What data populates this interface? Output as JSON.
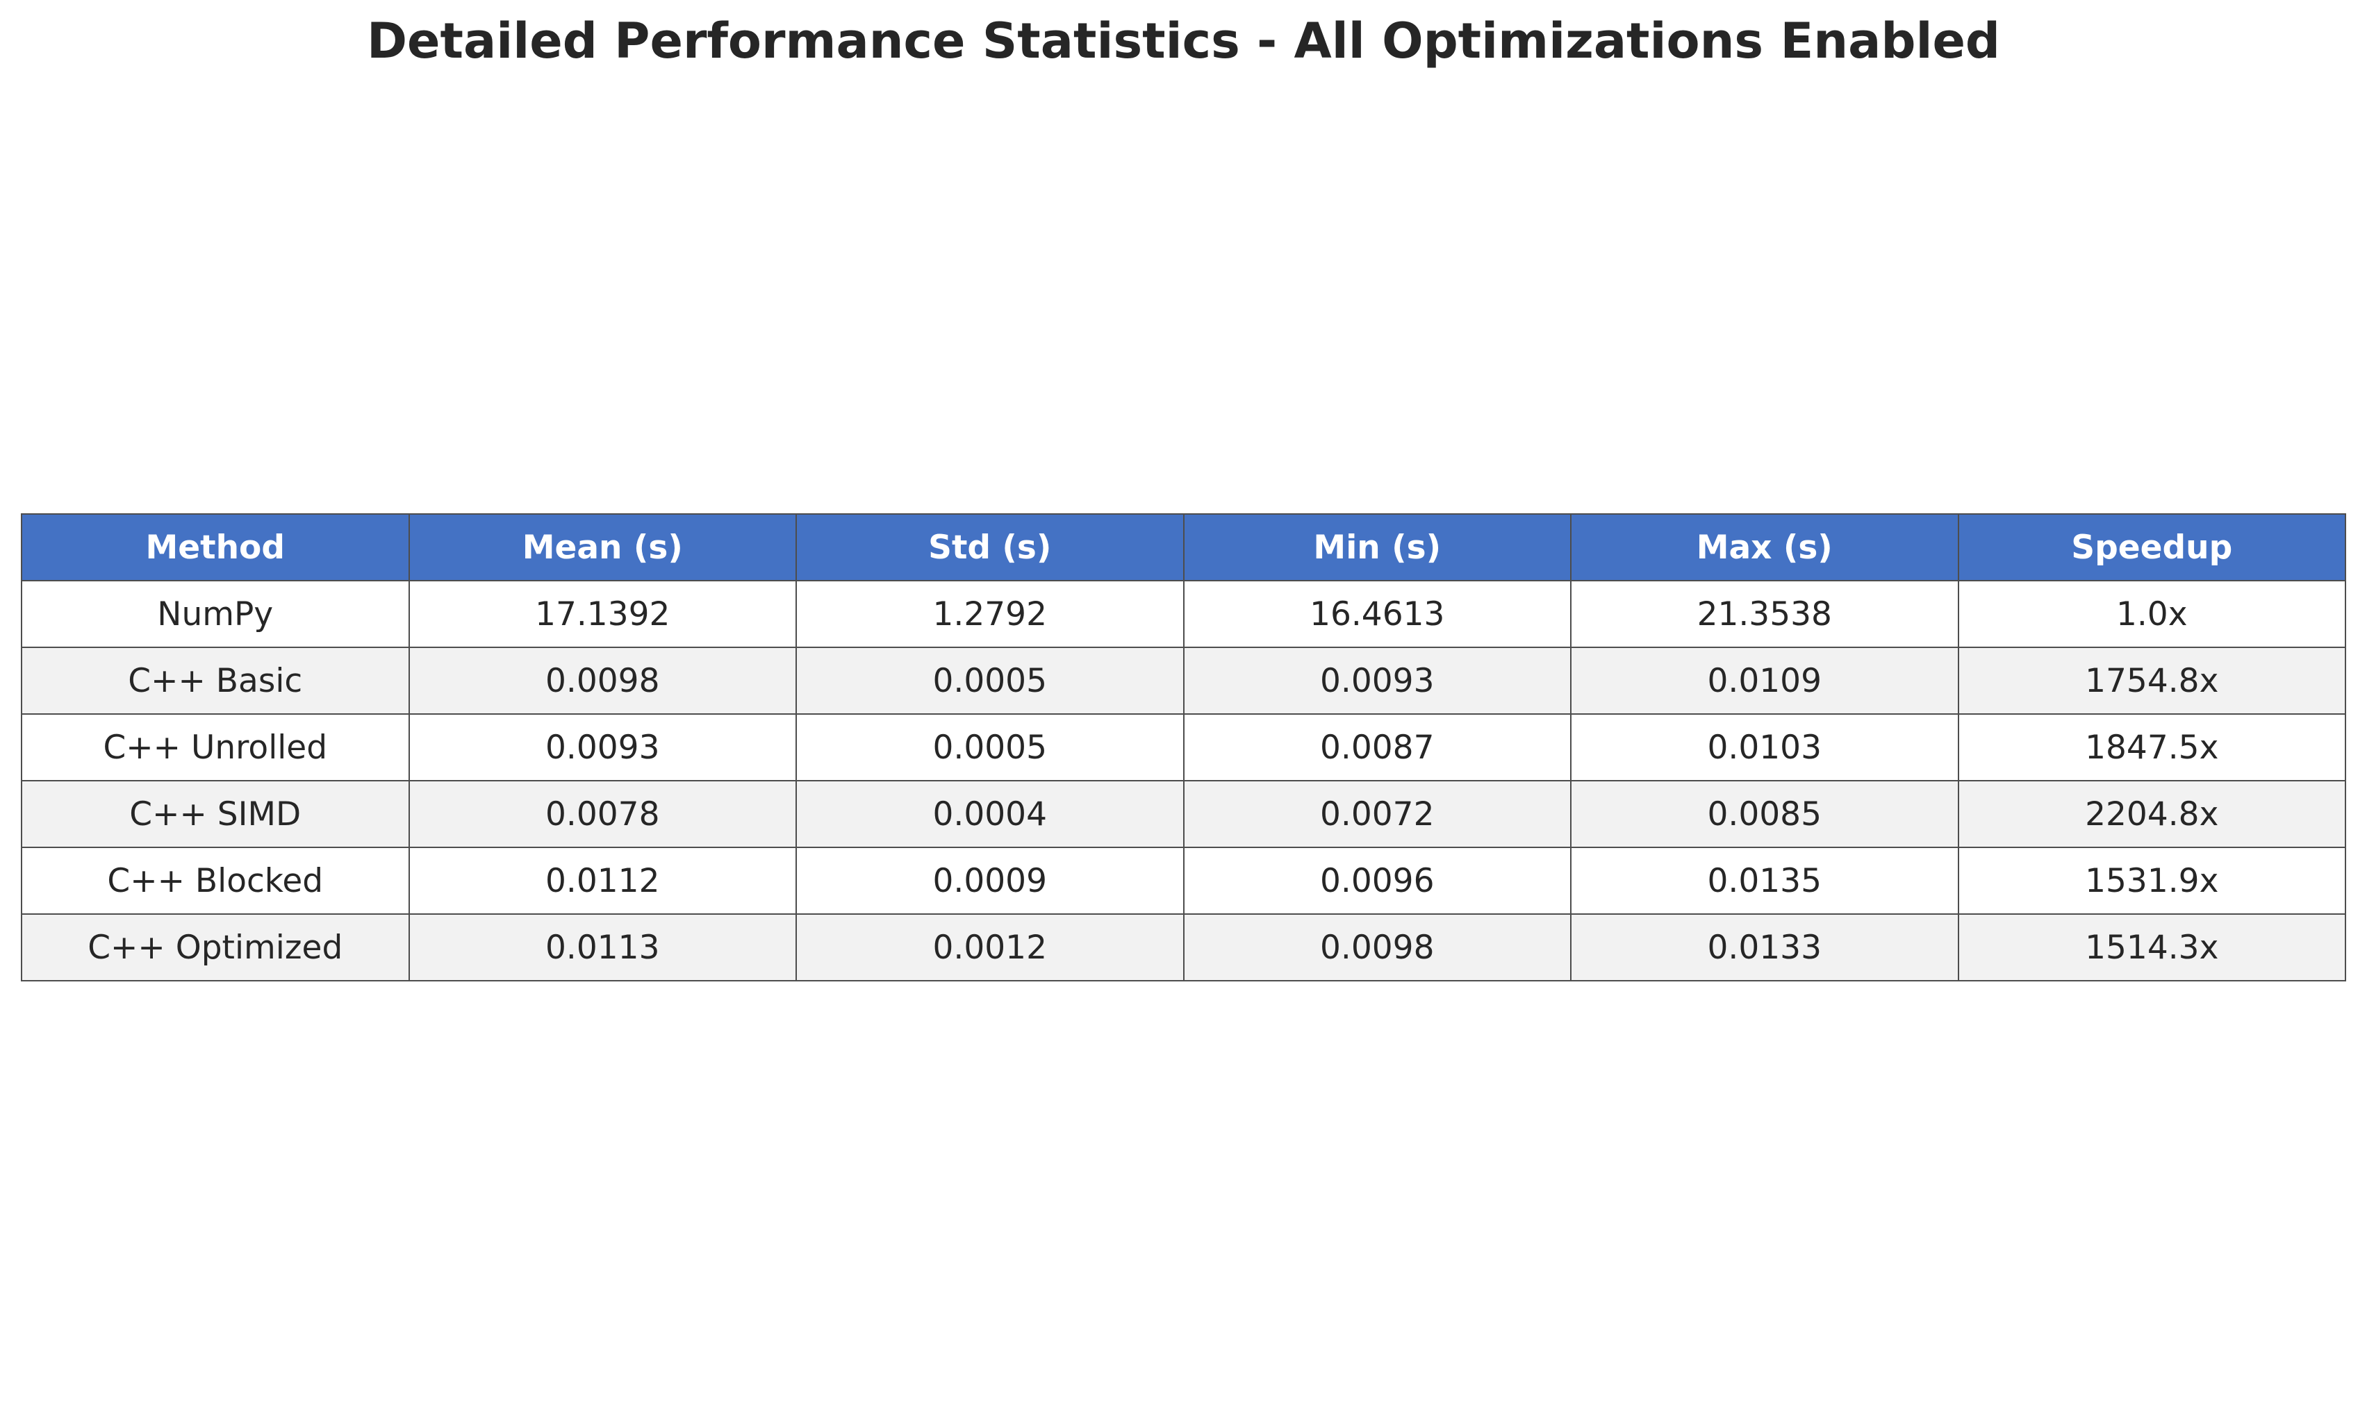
{
  "chart_data": {
    "type": "table",
    "title": "Detailed Performance Statistics - All Optimizations Enabled",
    "columns": [
      "Method",
      "Mean (s)",
      "Std (s)",
      "Min (s)",
      "Max (s)",
      "Speedup"
    ],
    "rows": [
      [
        "NumPy",
        "17.1392",
        "1.2792",
        "16.4613",
        "21.3538",
        "1.0x"
      ],
      [
        "C++ Basic",
        "0.0098",
        "0.0005",
        "0.0093",
        "0.0109",
        "1754.8x"
      ],
      [
        "C++ Unrolled",
        "0.0093",
        "0.0005",
        "0.0087",
        "0.0103",
        "1847.5x"
      ],
      [
        "C++ SIMD",
        "0.0078",
        "0.0004",
        "0.0072",
        "0.0085",
        "2204.8x"
      ],
      [
        "C++ Blocked",
        "0.0112",
        "0.0009",
        "0.0096",
        "0.0135",
        "1531.9x"
      ],
      [
        "C++ Optimized",
        "0.0113",
        "0.0012",
        "0.0098",
        "0.0133",
        "1514.3x"
      ]
    ],
    "header_color": "#4472c4",
    "header_text_color": "#ffffff",
    "row_colors": [
      "#ffffff",
      "#f2f2f2"
    ],
    "border_color": "#4d4d4d"
  }
}
